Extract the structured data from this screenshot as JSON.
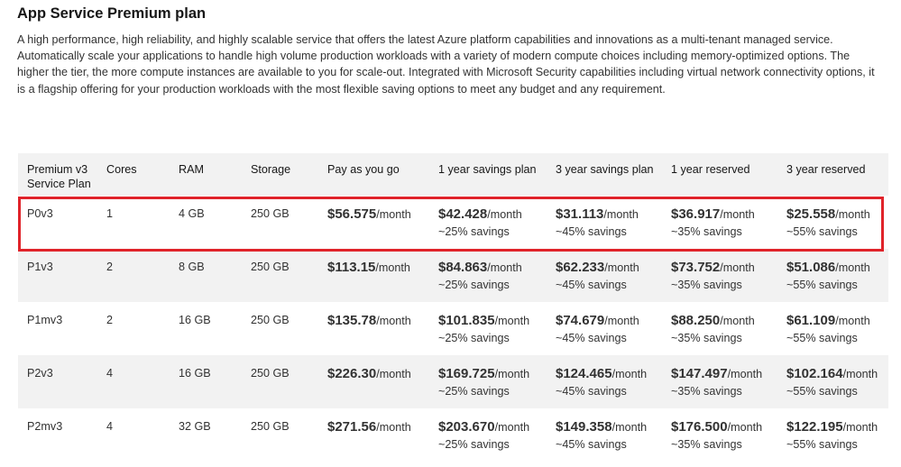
{
  "title": "App Service Premium plan",
  "description": "A high performance, high reliability, and highly scalable service that offers the latest Azure platform capabilities and innovations as a multi-tenant managed service. Automatically scale your applications to handle high volume production workloads with a variety of modern compute choices including memory-optimized options. The higher the tier, the more compute instances are available to you for scale-out. Integrated with Microsoft Security capabilities including virtual network connectivity options, it is a flagship offering for your production workloads with the most flexible saving options to meet any budget and any requirement.",
  "table": {
    "headers": {
      "plan_line1": "Premium v3",
      "plan_line2": "Service Plan",
      "cores": "Cores",
      "ram": "RAM",
      "storage": "Storage",
      "payg": "Pay as you go",
      "sp1": "1 year savings plan",
      "sp3": "3 year savings plan",
      "res1": "1 year reserved",
      "res3": "3 year reserved"
    },
    "unit": "/month",
    "rows": [
      {
        "plan": "P0v3",
        "cores": "1",
        "ram": "4 GB",
        "storage": "250 GB",
        "payg": "$56.575",
        "sp1": "$42.428",
        "sp1_save": "~25% savings",
        "sp3": "$31.113",
        "sp3_save": "~45% savings",
        "res1": "$36.917",
        "res1_save": "~35% savings",
        "res3": "$25.558",
        "res3_save": "~55% savings"
      },
      {
        "plan": "P1v3",
        "cores": "2",
        "ram": "8 GB",
        "storage": "250 GB",
        "payg": "$113.15",
        "sp1": "$84.863",
        "sp1_save": "~25% savings",
        "sp3": "$62.233",
        "sp3_save": "~45% savings",
        "res1": "$73.752",
        "res1_save": "~35% savings",
        "res3": "$51.086",
        "res3_save": "~55% savings"
      },
      {
        "plan": "P1mv3",
        "cores": "2",
        "ram": "16 GB",
        "storage": "250 GB",
        "payg": "$135.78",
        "sp1": "$101.835",
        "sp1_save": "~25% savings",
        "sp3": "$74.679",
        "sp3_save": "~45% savings",
        "res1": "$88.250",
        "res1_save": "~35% savings",
        "res3": "$61.109",
        "res3_save": "~55% savings"
      },
      {
        "plan": "P2v3",
        "cores": "4",
        "ram": "16 GB",
        "storage": "250 GB",
        "payg": "$226.30",
        "sp1": "$169.725",
        "sp1_save": "~25% savings",
        "sp3": "$124.465",
        "sp3_save": "~45% savings",
        "res1": "$147.497",
        "res1_save": "~35% savings",
        "res3": "$102.164",
        "res3_save": "~55% savings"
      },
      {
        "plan": "P2mv3",
        "cores": "4",
        "ram": "32 GB",
        "storage": "250 GB",
        "payg": "$271.56",
        "sp1": "$203.670",
        "sp1_save": "~25% savings",
        "sp3": "$149.358",
        "sp3_save": "~45% savings",
        "res1": "$176.500",
        "res1_save": "~35% savings",
        "res3": "$122.195",
        "res3_save": "~55% savings"
      }
    ]
  },
  "colors": {
    "highlight_border": "#e0232a",
    "row_stripe": "#f2f2f2"
  }
}
